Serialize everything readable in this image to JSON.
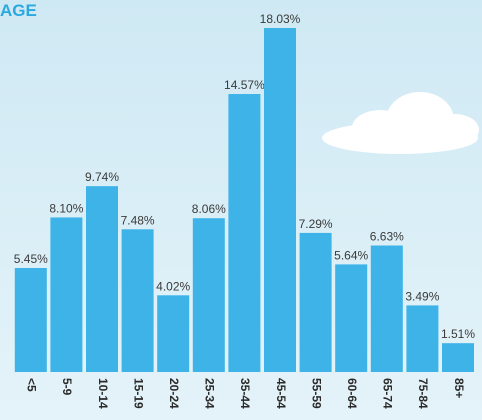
{
  "chart_data": {
    "type": "bar",
    "title": "AGE",
    "categories": [
      "<5",
      "5-9",
      "10-14",
      "15-19",
      "20-24",
      "25-34",
      "35-44",
      "45-54",
      "55-59",
      "60-64",
      "65-74",
      "75-84",
      "85+"
    ],
    "values": [
      5.45,
      8.1,
      9.74,
      7.48,
      4.02,
      8.06,
      14.57,
      18.03,
      7.29,
      5.64,
      6.63,
      3.49,
      1.51
    ],
    "value_labels": [
      "5.45%",
      "8.10%",
      "9.74%",
      "7.48%",
      "4.02%",
      "8.06%",
      "14.57%",
      "18.03%",
      "7.29%",
      "5.64%",
      "6.63%",
      "3.49%",
      "1.51%"
    ],
    "color": "#3db3e8"
  }
}
